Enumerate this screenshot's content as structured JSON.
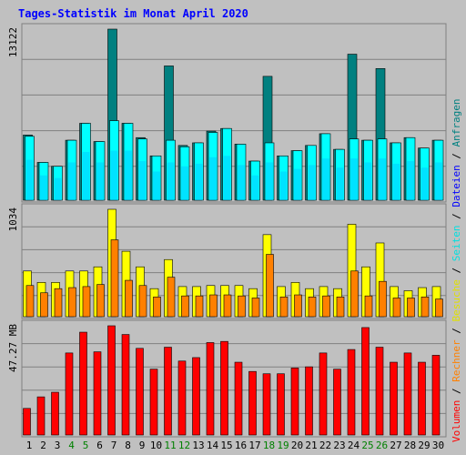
{
  "chart_data": {
    "type": "bar",
    "title": "Tages-Statistik im Monat April 2020",
    "grid": true,
    "colors": {
      "background": "#c0c0c0",
      "frame": "#808080",
      "grid": "#808080",
      "anfragen": "#008080",
      "dateien": "#00c0ff",
      "seiten": "#00ffff",
      "besuche": "#ffff00",
      "rechner": "#ff8000",
      "volumen": "#ff0000",
      "weekend_label": "#008000",
      "weekday_label": "#000000"
    },
    "categories": [
      "1",
      "2",
      "3",
      "4",
      "5",
      "6",
      "7",
      "8",
      "9",
      "10",
      "11",
      "12",
      "13",
      "14",
      "15",
      "16",
      "17",
      "18",
      "19",
      "20",
      "21",
      "22",
      "23",
      "24",
      "25",
      "26",
      "27",
      "28",
      "29",
      "30"
    ],
    "weekend_days": [
      "4",
      "5",
      "11",
      "12",
      "18",
      "19",
      "25",
      "26"
    ],
    "panels": [
      {
        "id": "top",
        "y_max_label": "13122",
        "ylim": [
          0,
          13122
        ],
        "series": [
          {
            "name": "Anfragen",
            "values": [
              5000,
              2900,
              2600,
              4600,
              5900,
              4500,
              13122,
              5900,
              4800,
              3400,
              10300,
              4200,
              4400,
              5300,
              5500,
              4300,
              3000,
              9500,
              3400,
              3800,
              4200,
              5100,
              3900,
              11200,
              4600,
              10100,
              4400,
              4800,
              4000,
              4600
            ]
          },
          {
            "name": "Dateien",
            "values": [
              3100,
              1900,
              1700,
              2900,
              3700,
              2900,
              3800,
              3800,
              3000,
              2200,
              2900,
              2600,
              2800,
              3300,
              3400,
              2700,
              1900,
              2900,
              2200,
              2400,
              2700,
              3200,
              2500,
              3200,
              2900,
              3200,
              2800,
              3000,
              2500,
              2900
            ]
          },
          {
            "name": "Seiten",
            "values": [
              4900,
              2900,
              2600,
              4600,
              5900,
              4500,
              6100,
              5900,
              4700,
              3400,
              4600,
              4100,
              4400,
              5200,
              5500,
              4300,
              3000,
              4400,
              3400,
              3800,
              4200,
              5100,
              3900,
              4700,
              4600,
              4700,
              4400,
              4800,
              4000,
              4600
            ]
          }
        ]
      },
      {
        "id": "middle",
        "y_max_label": "1034",
        "ylim": [
          0,
          1034
        ],
        "series": [
          {
            "name": "Besuche",
            "values": [
              440,
              330,
              330,
              440,
              440,
              480,
              1034,
              630,
              480,
              270,
              550,
              290,
              290,
              300,
              300,
              300,
              270,
              790,
              290,
              330,
              270,
              290,
              270,
              890,
              480,
              710,
              290,
              250,
              280,
              290
            ]
          },
          {
            "name": "Rechner",
            "values": [
              300,
              230,
              270,
              280,
              290,
              310,
              740,
              350,
              300,
              190,
              380,
              200,
              200,
              210,
              210,
              200,
              180,
              600,
              190,
              210,
              190,
              200,
              190,
              440,
              200,
              340,
              180,
              180,
              190,
              170
            ]
          }
        ]
      },
      {
        "id": "bottom",
        "y_max_label": "47.27 MB",
        "ylim": [
          0,
          47.27
        ],
        "series": [
          {
            "name": "Volumen",
            "values": [
              11.5,
              16.5,
              18.5,
              35.5,
              44.5,
              36.0,
              47.27,
              43.5,
              37.5,
              28.5,
              38.0,
              32.0,
              33.5,
              40.0,
              40.5,
              31.5,
              27.5,
              26.5,
              26.5,
              29.0,
              29.5,
              35.5,
              28.5,
              37.0,
              46.5,
              38.0,
              31.5,
              35.5,
              31.5,
              34.5
            ]
          }
        ]
      }
    ],
    "legend_placement": "right",
    "legend": [
      {
        "label": "Volumen",
        "color": "#ff0000"
      },
      {
        "label": "Rechner",
        "color": "#ff8000"
      },
      {
        "label": "Besuche",
        "color": "#e0e000"
      },
      {
        "label": "Seiten",
        "color": "#00e0e0"
      },
      {
        "label": "Dateien",
        "color": "#0000ff"
      },
      {
        "label": "Anfragen",
        "color": "#008080"
      }
    ],
    "legend_separator": "/"
  }
}
